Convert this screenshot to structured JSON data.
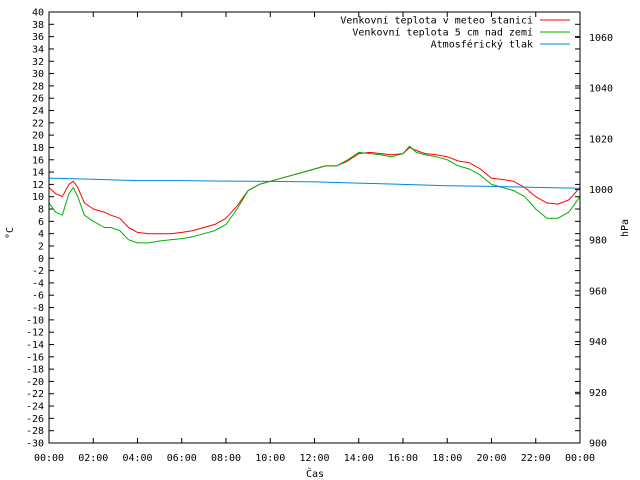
{
  "chart_data": {
    "type": "line",
    "xlabel": "Čas",
    "ylabel_left": "°C",
    "ylabel_right": "hPa",
    "y_left_range": [
      -30,
      40
    ],
    "y_left_ticks": [
      "-30",
      "-28",
      "-26",
      "-24",
      "-22",
      "-20",
      "-18",
      "-16",
      "-14",
      "-12",
      "-10",
      "-8",
      "-6",
      "-4",
      "-2",
      "0",
      "2",
      "4",
      "6",
      "8",
      "10",
      "12",
      "14",
      "16",
      "18",
      "20",
      "22",
      "24",
      "26",
      "28",
      "30",
      "32",
      "34",
      "36",
      "38",
      "40"
    ],
    "y_right_range": [
      900,
      1070
    ],
    "y_right_ticks": [
      "900",
      "920",
      "940",
      "960",
      "980",
      "1000",
      "1020",
      "1040",
      "1060"
    ],
    "x_range": [
      0,
      24
    ],
    "x_ticks": [
      "00:00",
      "02:00",
      "04:00",
      "06:00",
      "08:00",
      "10:00",
      "12:00",
      "14:00",
      "16:00",
      "18:00",
      "20:00",
      "22:00",
      "00:00"
    ],
    "grid": false,
    "legend_position": "top-right",
    "series": [
      {
        "name": "Venkovní teplota v meteo stanici",
        "color": "#ff0000",
        "axis": "left",
        "points": [
          [
            0,
            11.5
          ],
          [
            0.3,
            10.5
          ],
          [
            0.6,
            10
          ],
          [
            0.9,
            12
          ],
          [
            1.1,
            12.5
          ],
          [
            1.3,
            11.5
          ],
          [
            1.6,
            9
          ],
          [
            2,
            8
          ],
          [
            2.5,
            7.5
          ],
          [
            2.8,
            7
          ],
          [
            3.2,
            6.5
          ],
          [
            3.6,
            5
          ],
          [
            4,
            4.2
          ],
          [
            4.5,
            4
          ],
          [
            5,
            4
          ],
          [
            5.5,
            4
          ],
          [
            6,
            4.2
          ],
          [
            6.5,
            4.5
          ],
          [
            7,
            5
          ],
          [
            7.5,
            5.5
          ],
          [
            8,
            6.5
          ],
          [
            8.5,
            8.5
          ],
          [
            9,
            11
          ],
          [
            9.5,
            12
          ],
          [
            10,
            12.5
          ],
          [
            10.5,
            13
          ],
          [
            11,
            13.5
          ],
          [
            11.5,
            14
          ],
          [
            12,
            14.5
          ],
          [
            12.5,
            15
          ],
          [
            13,
            15
          ],
          [
            13.5,
            15.8
          ],
          [
            14,
            17
          ],
          [
            14.5,
            17.2
          ],
          [
            15,
            17
          ],
          [
            15.5,
            16.8
          ],
          [
            16,
            17
          ],
          [
            16.3,
            18
          ],
          [
            16.6,
            17.5
          ],
          [
            17,
            17
          ],
          [
            17.5,
            16.8
          ],
          [
            18,
            16.5
          ],
          [
            18.5,
            15.8
          ],
          [
            19,
            15.5
          ],
          [
            19.5,
            14.5
          ],
          [
            20,
            13
          ],
          [
            20.5,
            12.8
          ],
          [
            21,
            12.5
          ],
          [
            21.5,
            11.5
          ],
          [
            22,
            10
          ],
          [
            22.5,
            9
          ],
          [
            23,
            8.8
          ],
          [
            23.5,
            9.5
          ],
          [
            24,
            11.5
          ]
        ]
      },
      {
        "name": "Venkovní teplota 5 cm nad zemí",
        "color": "#00b000",
        "axis": "left",
        "points": [
          [
            0,
            9
          ],
          [
            0.3,
            7.5
          ],
          [
            0.6,
            7
          ],
          [
            0.9,
            10.5
          ],
          [
            1.1,
            11.5
          ],
          [
            1.3,
            10
          ],
          [
            1.6,
            7
          ],
          [
            2,
            6
          ],
          [
            2.5,
            5
          ],
          [
            2.8,
            5
          ],
          [
            3.2,
            4.5
          ],
          [
            3.6,
            3
          ],
          [
            4,
            2.5
          ],
          [
            4.5,
            2.5
          ],
          [
            5,
            2.8
          ],
          [
            5.5,
            3
          ],
          [
            6,
            3.2
          ],
          [
            6.5,
            3.5
          ],
          [
            7,
            4
          ],
          [
            7.5,
            4.5
          ],
          [
            8,
            5.5
          ],
          [
            8.5,
            8
          ],
          [
            9,
            11
          ],
          [
            9.5,
            12
          ],
          [
            10,
            12.5
          ],
          [
            10.5,
            13
          ],
          [
            11,
            13.5
          ],
          [
            11.5,
            14
          ],
          [
            12,
            14.5
          ],
          [
            12.5,
            15
          ],
          [
            13,
            15
          ],
          [
            13.5,
            16
          ],
          [
            14,
            17.2
          ],
          [
            14.5,
            17
          ],
          [
            15,
            16.8
          ],
          [
            15.5,
            16.5
          ],
          [
            16,
            17
          ],
          [
            16.3,
            18.2
          ],
          [
            16.6,
            17.2
          ],
          [
            17,
            16.8
          ],
          [
            17.5,
            16.5
          ],
          [
            18,
            16
          ],
          [
            18.5,
            15
          ],
          [
            19,
            14.5
          ],
          [
            19.5,
            13.5
          ],
          [
            20,
            12
          ],
          [
            20.5,
            11.5
          ],
          [
            21,
            11
          ],
          [
            21.5,
            10
          ],
          [
            22,
            8
          ],
          [
            22.5,
            6.5
          ],
          [
            23,
            6.5
          ],
          [
            23.5,
            7.5
          ],
          [
            24,
            10
          ]
        ]
      },
      {
        "name": "Atmosférický tlak",
        "color": "#0088dd",
        "axis": "right",
        "points": [
          [
            0,
            1004.5
          ],
          [
            2,
            1004
          ],
          [
            4,
            1003.5
          ],
          [
            6,
            1003.5
          ],
          [
            8,
            1003.3
          ],
          [
            10,
            1003.2
          ],
          [
            12,
            1003
          ],
          [
            14,
            1002.5
          ],
          [
            16,
            1002
          ],
          [
            18,
            1001.5
          ],
          [
            20,
            1001.2
          ],
          [
            22,
            1000.8
          ],
          [
            24,
            1000.5
          ]
        ]
      }
    ]
  }
}
